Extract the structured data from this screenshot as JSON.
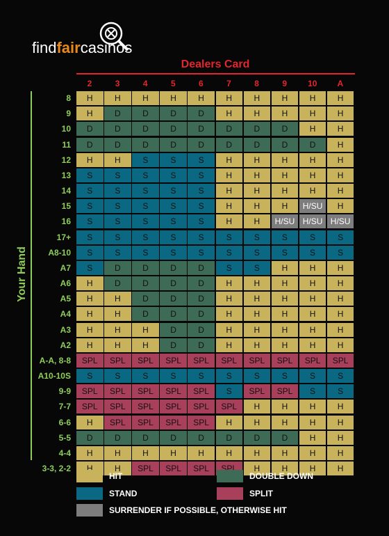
{
  "logo": {
    "find": "find",
    "fair": "fair",
    "casinos": "casinos"
  },
  "table": {
    "column_title": "Dealers Card",
    "row_title": "Your Hand",
    "columns": [
      "2",
      "3",
      "4",
      "5",
      "6",
      "7",
      "8",
      "9",
      "10",
      "A"
    ],
    "cell_colors": {
      "H": "#c9b25c",
      "D": "#3d6b55",
      "S": "#0b6882",
      "SPL": "#a83f5b",
      "H/SU": "#7d7d7d"
    },
    "rows": [
      {
        "label": "8",
        "cells": [
          "H",
          "H",
          "H",
          "H",
          "H",
          "H",
          "H",
          "H",
          "H",
          "H"
        ]
      },
      {
        "label": "9",
        "cells": [
          "H",
          "D",
          "D",
          "D",
          "D",
          "H",
          "H",
          "H",
          "H",
          "H"
        ]
      },
      {
        "label": "10",
        "cells": [
          "D",
          "D",
          "D",
          "D",
          "D",
          "D",
          "D",
          "D",
          "H",
          "H"
        ]
      },
      {
        "label": "11",
        "cells": [
          "D",
          "D",
          "D",
          "D",
          "D",
          "D",
          "D",
          "D",
          "D",
          "H"
        ]
      },
      {
        "label": "12",
        "cells": [
          "H",
          "H",
          "S",
          "S",
          "S",
          "H",
          "H",
          "H",
          "H",
          "H"
        ]
      },
      {
        "label": "13",
        "cells": [
          "S",
          "S",
          "S",
          "S",
          "S",
          "H",
          "H",
          "H",
          "H",
          "H"
        ]
      },
      {
        "label": "14",
        "cells": [
          "S",
          "S",
          "S",
          "S",
          "S",
          "H",
          "H",
          "H",
          "H",
          "H"
        ]
      },
      {
        "label": "15",
        "cells": [
          "S",
          "S",
          "S",
          "S",
          "S",
          "H",
          "H",
          "H",
          "H/SU",
          "H"
        ]
      },
      {
        "label": "16",
        "cells": [
          "S",
          "S",
          "S",
          "S",
          "S",
          "H",
          "H",
          "H/SU",
          "H/SU",
          "H/SU"
        ]
      },
      {
        "label": "17+",
        "cells": [
          "S",
          "S",
          "S",
          "S",
          "S",
          "S",
          "S",
          "S",
          "S",
          "S"
        ]
      },
      {
        "label": "A8-10",
        "cells": [
          "S",
          "S",
          "S",
          "S",
          "S",
          "S",
          "S",
          "S",
          "S",
          "S"
        ]
      },
      {
        "label": "A7",
        "cells": [
          "S",
          "D",
          "D",
          "D",
          "D",
          "S",
          "S",
          "H",
          "H",
          "H"
        ]
      },
      {
        "label": "A6",
        "cells": [
          "H",
          "D",
          "D",
          "D",
          "D",
          "H",
          "H",
          "H",
          "H",
          "H"
        ]
      },
      {
        "label": "A5",
        "cells": [
          "H",
          "H",
          "D",
          "D",
          "D",
          "H",
          "H",
          "H",
          "H",
          "H"
        ]
      },
      {
        "label": "A4",
        "cells": [
          "H",
          "H",
          "D",
          "D",
          "D",
          "H",
          "H",
          "H",
          "H",
          "H"
        ]
      },
      {
        "label": "A3",
        "cells": [
          "H",
          "H",
          "H",
          "D",
          "D",
          "H",
          "H",
          "H",
          "H",
          "H"
        ]
      },
      {
        "label": "A2",
        "cells": [
          "H",
          "H",
          "H",
          "D",
          "D",
          "H",
          "H",
          "H",
          "H",
          "H"
        ]
      },
      {
        "label": "A-A, 8-8",
        "cells": [
          "SPL",
          "SPL",
          "SPL",
          "SPL",
          "SPL",
          "SPL",
          "SPL",
          "SPL",
          "SPL",
          "SPL"
        ]
      },
      {
        "label": "A10-10S",
        "cells": [
          "S",
          "S",
          "S",
          "S",
          "S",
          "S",
          "S",
          "S",
          "S",
          "S"
        ]
      },
      {
        "label": "9-9",
        "cells": [
          "SPL",
          "SPL",
          "SPL",
          "SPL",
          "SPL",
          "S",
          "SPL",
          "SPL",
          "S",
          "S"
        ]
      },
      {
        "label": "7-7",
        "cells": [
          "SPL",
          "SPL",
          "SPL",
          "SPL",
          "SPL",
          "SPL",
          "H",
          "H",
          "H",
          "H"
        ]
      },
      {
        "label": "6-6",
        "cells": [
          "H",
          "SPL",
          "SPL",
          "SPL",
          "SPL",
          "H",
          "H",
          "H",
          "H",
          "H"
        ]
      },
      {
        "label": "5-5",
        "cells": [
          "D",
          "D",
          "D",
          "D",
          "D",
          "D",
          "D",
          "D",
          "H",
          "H"
        ]
      },
      {
        "label": "4-4",
        "cells": [
          "H",
          "H",
          "H",
          "H",
          "H",
          "H",
          "H",
          "H",
          "H",
          "H"
        ]
      },
      {
        "label": "3-3, 2-2",
        "cells": [
          "H",
          "H",
          "SPL",
          "SPL",
          "SPL",
          "SPL",
          "H",
          "H",
          "H",
          "H"
        ]
      }
    ]
  },
  "legend": [
    {
      "label": "HIT",
      "color": "#c9b25c"
    },
    {
      "label": "STAND",
      "color": "#0b6882"
    },
    {
      "label": "SURRENDER IF POSSIBLE, OTHERWISE HIT",
      "color": "#7d7d7d"
    },
    {
      "label": "DOUBLE DOWN",
      "color": "#3d6b55"
    },
    {
      "label": "SPLIT",
      "color": "#a83f5b"
    }
  ]
}
